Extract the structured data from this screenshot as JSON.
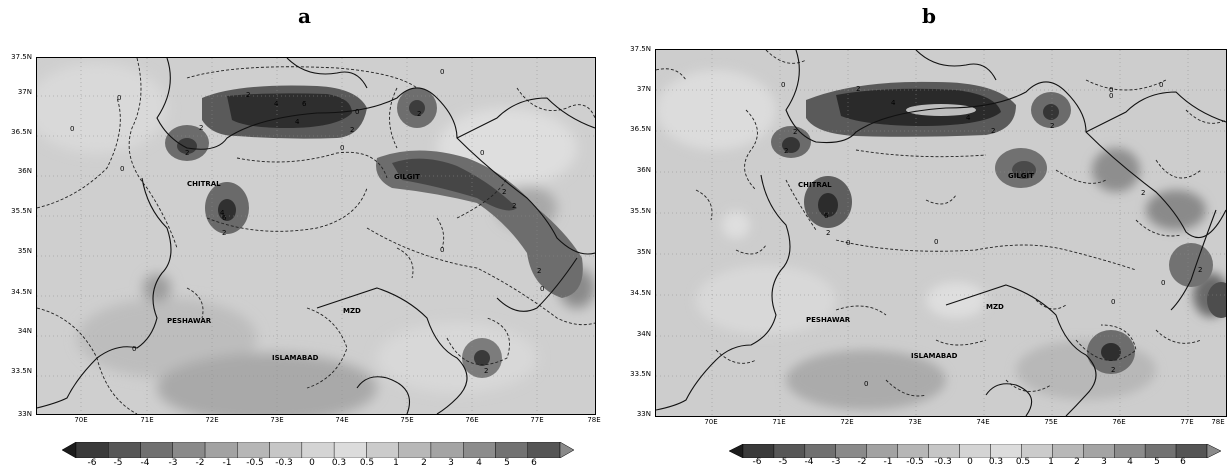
{
  "panels": [
    {
      "id": "a",
      "letter": "a",
      "lat_labels": [
        "37.5N",
        "37N",
        "36.5N",
        "36N",
        "35.5N",
        "35N",
        "34.5N",
        "34N",
        "33.5N",
        "33N"
      ],
      "lon_labels": [
        "70E",
        "71E",
        "72E",
        "73E",
        "74E",
        "75E",
        "76E",
        "77E",
        "78E"
      ],
      "cities": [
        "CHITRAL",
        "GILGIT",
        "PESHAWAR",
        "MZD",
        "ISLAMABAD"
      ],
      "contour_labels": [
        "0",
        "0",
        "0",
        "0",
        "0",
        "0",
        "0",
        "0",
        "0",
        "0",
        "2",
        "2",
        "2",
        "2",
        "2",
        "2",
        "2",
        "2",
        "2",
        "2",
        "4",
        "4",
        "4",
        "6",
        "6"
      ],
      "colorbar_ticks": [
        "-6",
        "-5",
        "-4",
        "-3",
        "-2",
        "-1",
        "-0.5",
        "-0.3",
        "0",
        "0.3",
        "0.5",
        "1",
        "2",
        "3",
        "4",
        "5",
        "6"
      ]
    },
    {
      "id": "b",
      "letter": "b",
      "lat_labels": [
        "37.5N",
        "37N",
        "36.5N",
        "36N",
        "35.5N",
        "35N",
        "34.5N",
        "34N",
        "33.5N",
        "33N"
      ],
      "lon_labels": [
        "70E",
        "71E",
        "72E",
        "73E",
        "74E",
        "75E",
        "76E",
        "77E",
        "78E"
      ],
      "cities": [
        "CHITRAL",
        "GILGIT",
        "PESHAWAR",
        "MZD",
        "ISLAMABAD"
      ],
      "contour_labels": [
        "0",
        "0",
        "0",
        "0",
        "0",
        "0",
        "0",
        "0",
        "0",
        "2",
        "2",
        "2",
        "2",
        "2",
        "2",
        "2",
        "2",
        "2",
        "4",
        "4",
        "6"
      ],
      "colorbar_ticks": [
        "-6",
        "-5",
        "-4",
        "-3",
        "-2",
        "-1",
        "-0.5",
        "-0.3",
        "0",
        "0.3",
        "0.5",
        "1",
        "2",
        "3",
        "4",
        "5",
        "6"
      ]
    }
  ],
  "colorbar_colors": [
    "#1c1c1c",
    "#3a3a3a",
    "#575757",
    "#707070",
    "#8a8a8a",
    "#a2a2a2",
    "#b6b6b6",
    "#c6c6c6",
    "#d4d4d4",
    "#dcdcdc",
    "#cbcbcb",
    "#b8b8b8",
    "#a4a4a4",
    "#8c8c8c",
    "#727272",
    "#555555",
    "#8a8a8a"
  ]
}
